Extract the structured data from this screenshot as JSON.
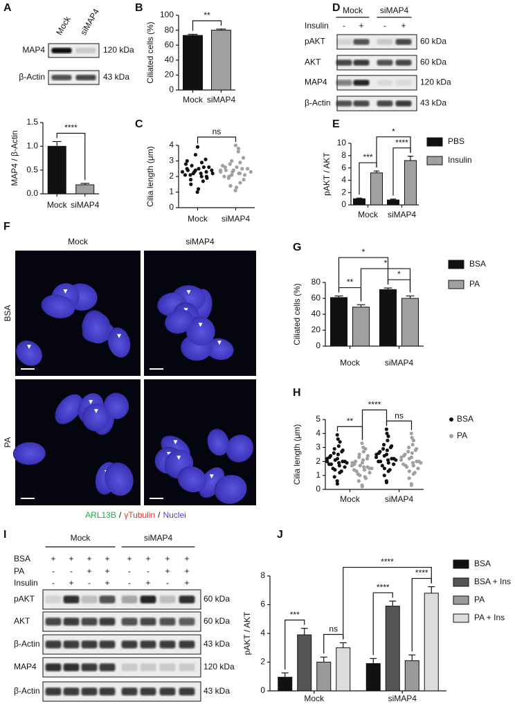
{
  "blots": [
    {
      "panel": "A",
      "lanes": [
        "Mock",
        "siMAP4"
      ],
      "rows": [
        {
          "protein": "MAP4",
          "size": "120 kDa"
        },
        {
          "protein": "β-Actin",
          "size": "43 kDa"
        }
      ]
    },
    {
      "panel": "D",
      "groups": [
        "Mock",
        "siMAP4"
      ],
      "conditions": [
        {
          "name": "Insulin",
          "marks": [
            "-",
            "+",
            "-",
            "+"
          ]
        }
      ],
      "rows": [
        {
          "protein": "pAKT",
          "size": "60 kDa"
        },
        {
          "protein": "AKT",
          "size": "60 kDa"
        },
        {
          "protein": "MAP4",
          "size": "120 kDa"
        },
        {
          "protein": "β-Actin",
          "size": "43 kDa"
        }
      ]
    },
    {
      "panel": "I",
      "groups": [
        "Mock",
        "siMAP4"
      ],
      "conditions": [
        {
          "name": "BSA",
          "marks": [
            "+",
            "+",
            "+",
            "+",
            "+",
            "+",
            "+",
            "+"
          ]
        },
        {
          "name": "PA",
          "marks": [
            "-",
            "-",
            "+",
            "+",
            "-",
            "-",
            "+",
            "+"
          ]
        },
        {
          "name": "Insulin",
          "marks": [
            "-",
            "+",
            "-",
            "+",
            "-",
            "+",
            "-",
            "+"
          ]
        }
      ],
      "rows": [
        {
          "protein": "pAKT",
          "size": "60 kDa"
        },
        {
          "protein": "AKT",
          "size": "60 kDa"
        },
        {
          "protein": "β-Actin",
          "size": "43 kDa"
        },
        {
          "protein": "MAP4",
          "size": "120 kDa"
        },
        {
          "protein": "β-Actin",
          "size": "43 kDa"
        }
      ]
    }
  ],
  "micrograph": {
    "panel": "F",
    "columns": [
      "Mock",
      "siMAP4"
    ],
    "rows": [
      "BSA",
      "PA"
    ],
    "stains": [
      {
        "name": "ARL13B",
        "color": "#22a84a"
      },
      {
        "name": "γTubulin",
        "color": "#e0332a"
      },
      {
        "name": "Nuclei",
        "color": "#4a3fc8"
      }
    ],
    "separator": "/"
  },
  "chart_data": [
    {
      "type": "bar",
      "ylabel": "MAP4 / β-Actin",
      "categories": [
        "Mock",
        "siMAP4"
      ],
      "values": [
        1.0,
        0.19
      ],
      "errors": [
        0.1,
        0.03
      ],
      "colors": [
        "#111111",
        "#a0a0a0"
      ],
      "ylim": [
        0,
        1.5
      ],
      "yticks": [
        {
          "value": 0,
          "label": "0.0"
        },
        0.5,
        {
          "value": 1,
          "label": "1.0"
        },
        1.5
      ],
      "significance": [
        {
          "label": "****",
          "between": [
            "Mock",
            "siMAP4"
          ]
        }
      ]
    },
    {
      "type": "bar",
      "panel": "B",
      "ylabel": "Ciliated cells (%)",
      "categories": [
        "Mock",
        "siMAP4"
      ],
      "values": [
        73,
        80
      ],
      "errors": [
        1.5,
        1.5
      ],
      "colors": [
        "#111111",
        "#a0a0a0"
      ],
      "ylim": [
        0,
        100
      ],
      "yticks": [
        0,
        20,
        40,
        60,
        80,
        100
      ],
      "significance": [
        {
          "label": "**",
          "between": [
            "Mock",
            "siMAP4"
          ]
        }
      ]
    },
    {
      "type": "strip",
      "panel": "C",
      "ylabel": "Cilia length (μm)",
      "categories": [
        "Mock",
        "siMAP4"
      ],
      "colors": [
        "#111111",
        "#a0a0a0"
      ],
      "values": [
        [
          2.3,
          2.1,
          2.5,
          1.8,
          2.7,
          2.2,
          2.4,
          3.9,
          1.2,
          2.0,
          2.6,
          2.3,
          1.9,
          3.1,
          2.2,
          2.8,
          1.5,
          2.4,
          2.1,
          3.4,
          2.3,
          1.0,
          2.5,
          2.2,
          2.9,
          1.7,
          2.0,
          2.6,
          2.4,
          3.0
        ],
        [
          2.3,
          2.0,
          2.6,
          1.9,
          2.8,
          2.1,
          2.4,
          4.0,
          1.3,
          2.2,
          2.5,
          3.6,
          1.8,
          3.2,
          2.3,
          2.7,
          1.4,
          2.4,
          2.0,
          3.0,
          2.3,
          1.1,
          2.6,
          2.2,
          2.9,
          1.6,
          2.1,
          2.5,
          3.8,
          2.4
        ]
      ],
      "ylim": [
        0,
        4
      ],
      "yticks": [
        0,
        1,
        2,
        3,
        4
      ],
      "significance": [
        {
          "label": "ns",
          "between": [
            "Mock",
            "siMAP4"
          ]
        }
      ]
    },
    {
      "type": "bar",
      "panel": "E",
      "ylabel": "pAKT / AKT",
      "categories": [
        "Mock",
        "siMAP4"
      ],
      "series": [
        {
          "name": "PBS",
          "color": "#111111",
          "values": [
            1.0,
            0.8
          ],
          "errors": [
            0.1,
            0.15
          ]
        },
        {
          "name": "Insulin",
          "color": "#a0a0a0",
          "values": [
            5.2,
            7.2
          ],
          "errors": [
            0.3,
            0.7
          ]
        }
      ],
      "ylim": [
        0,
        10
      ],
      "yticks": [
        0,
        2,
        4,
        6,
        8,
        10
      ],
      "significance": [
        {
          "label": "***",
          "between": [
            [
              "Mock",
              "PBS"
            ],
            [
              "Mock",
              "Insulin"
            ]
          ]
        },
        {
          "label": "****",
          "between": [
            [
              "siMAP4",
              "PBS"
            ],
            [
              "siMAP4",
              "Insulin"
            ]
          ]
        },
        {
          "label": "*",
          "between": [
            [
              "Mock",
              "Insulin"
            ],
            [
              "siMAP4",
              "Insulin"
            ]
          ]
        }
      ]
    },
    {
      "type": "bar",
      "panel": "G",
      "ylabel": "Ciliated cells (%)",
      "categories": [
        "Mock",
        "siMAP4"
      ],
      "series": [
        {
          "name": "BSA",
          "color": "#111111",
          "values": [
            61,
            71
          ],
          "errors": [
            2,
            2
          ]
        },
        {
          "name": "PA",
          "color": "#a0a0a0",
          "values": [
            49,
            60
          ],
          "errors": [
            3,
            3
          ]
        }
      ],
      "ylim": [
        0,
        80
      ],
      "yticks": [
        0,
        20,
        40,
        60,
        80
      ],
      "significance": [
        {
          "label": "**",
          "between": [
            [
              "Mock",
              "BSA"
            ],
            [
              "Mock",
              "PA"
            ]
          ]
        },
        {
          "label": "*",
          "between": [
            [
              "siMAP4",
              "BSA"
            ],
            [
              "siMAP4",
              "PA"
            ]
          ]
        },
        {
          "label": "*",
          "between": [
            [
              "Mock",
              "PA"
            ],
            [
              "siMAP4",
              "PA"
            ]
          ]
        },
        {
          "label": "*",
          "between": [
            [
              "Mock",
              "BSA"
            ],
            [
              "siMAP4",
              "BSA"
            ]
          ]
        }
      ]
    },
    {
      "type": "strip",
      "panel": "H",
      "ylabel": "Cilia length (μm)",
      "categories": [
        "Mock",
        "siMAP4"
      ],
      "series": [
        {
          "name": "BSA",
          "color": "#111111",
          "values": [
            [
              2.0,
              1.8,
              2.4,
              1.5,
              2.6,
              3.9,
              0.6,
              2.2,
              1.9,
              3.1,
              1.2,
              2.7,
              2.0,
              1.6,
              3.4,
              0.9,
              2.3,
              1.8,
              2.9,
              1.4,
              2.1,
              0.4,
              2.5,
              1.7,
              3.6,
              2.0,
              1.3,
              2.8,
              1.9,
              2.2
            ],
            [
              2.3,
              2.0,
              2.7,
              1.7,
              2.9,
              4.3,
              0.6,
              2.5,
              2.1,
              3.5,
              1.3,
              3.0,
              2.2,
              1.8,
              3.8,
              1.0,
              2.6,
              2.0,
              3.2,
              1.5,
              2.4,
              0.5,
              2.8,
              1.9,
              4.0,
              2.2,
              1.4,
              3.1,
              2.1,
              2.5
            ]
          ]
        },
        {
          "name": "PA",
          "color": "#a0a0a0",
          "values": [
            [
              1.7,
              1.4,
              2.0,
              1.1,
              2.3,
              3.3,
              0.3,
              1.9,
              1.6,
              2.7,
              0.9,
              2.2,
              1.5,
              1.2,
              2.9,
              0.6,
              1.8,
              1.3,
              2.5,
              1.0,
              1.7,
              0.2,
              2.1,
              1.4,
              3.0,
              1.6,
              0.8,
              2.4,
              1.5,
              1.9
            ],
            [
              2.1,
              1.8,
              2.5,
              1.6,
              2.7,
              4.0,
              0.4,
              2.3,
              1.9,
              3.2,
              1.1,
              2.8,
              2.0,
              1.5,
              3.5,
              0.8,
              2.4,
              1.7,
              3.0,
              1.3,
              2.2,
              0.3,
              2.6,
              1.7,
              3.7,
              2.0,
              1.2,
              2.9,
              1.9,
              2.3
            ]
          ]
        }
      ],
      "ylim": [
        0,
        5
      ],
      "yticks": [
        0,
        1,
        2,
        3,
        4,
        5
      ],
      "significance": [
        {
          "label": "**",
          "between": [
            [
              "Mock",
              "BSA"
            ],
            [
              "Mock",
              "PA"
            ]
          ]
        },
        {
          "label": "ns",
          "between": [
            [
              "siMAP4",
              "BSA"
            ],
            [
              "siMAP4",
              "PA"
            ]
          ]
        },
        {
          "label": "****",
          "between": [
            [
              "Mock",
              "PA"
            ],
            [
              "siMAP4",
              "BSA"
            ]
          ]
        }
      ]
    },
    {
      "type": "bar",
      "panel": "J",
      "ylabel": "pAKT / AKT",
      "categories": [
        "Mock",
        "siMAP4"
      ],
      "series": [
        {
          "name": "BSA",
          "color": "#111111",
          "values": [
            0.95,
            1.9
          ],
          "errors": [
            0.3,
            0.35
          ]
        },
        {
          "name": "BSA + Ins",
          "color": "#555555",
          "values": [
            3.9,
            5.9
          ],
          "errors": [
            0.45,
            0.35
          ]
        },
        {
          "name": "PA",
          "color": "#9a9a9a",
          "values": [
            2.0,
            2.1
          ],
          "errors": [
            0.35,
            0.4
          ]
        },
        {
          "name": "PA + Ins",
          "color": "#dcdcdc",
          "values": [
            3.0,
            6.8
          ],
          "errors": [
            0.35,
            0.45
          ]
        }
      ],
      "ylim": [
        0,
        8
      ],
      "yticks": [
        0,
        2,
        4,
        6,
        8
      ],
      "significance": [
        {
          "label": "***",
          "between": [
            [
              "Mock",
              "BSA"
            ],
            [
              "Mock",
              "BSA + Ins"
            ]
          ]
        },
        {
          "label": "ns",
          "between": [
            [
              "Mock",
              "PA"
            ],
            [
              "Mock",
              "PA + Ins"
            ]
          ]
        },
        {
          "label": "****",
          "between": [
            [
              "siMAP4",
              "BSA"
            ],
            [
              "siMAP4",
              "BSA + Ins"
            ]
          ]
        },
        {
          "label": "****",
          "between": [
            [
              "siMAP4",
              "PA"
            ],
            [
              "siMAP4",
              "PA + Ins"
            ]
          ]
        },
        {
          "label": "****",
          "between": [
            [
              "Mock",
              "PA + Ins"
            ],
            [
              "siMAP4",
              "PA + Ins"
            ]
          ]
        }
      ]
    }
  ]
}
